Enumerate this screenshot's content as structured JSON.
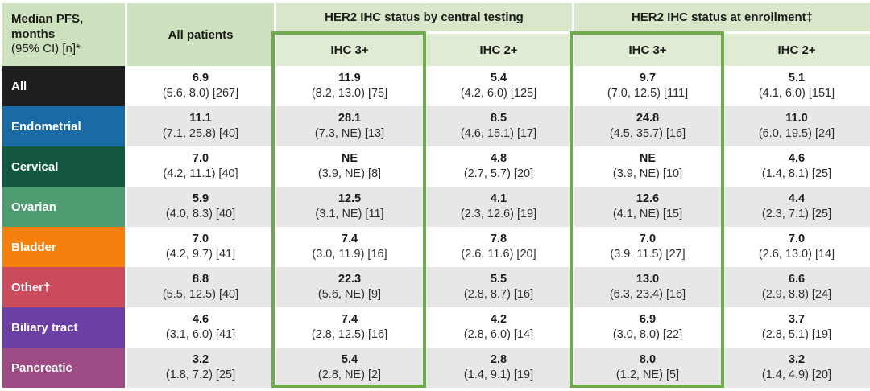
{
  "colors": {
    "header_corner_bg": "#cfe2bf",
    "header_group_bg": "#d8e7c9",
    "header_sub_bg": "#dfecd3",
    "highlight_border_green": "#6faa4d",
    "row_alt_bg": "#e7e7e7",
    "row_label_colors": [
      "#1e1e1e",
      "#1a6ba5",
      "#135743",
      "#4f9c72",
      "#f6800e",
      "#c94b5c",
      "#6b3fa4",
      "#9d4b84"
    ]
  },
  "chart_data": {
    "type": "table",
    "title": "Median PFS, months (95% CI) [n]*",
    "corner_header": [
      "Median PFS,",
      "months",
      "(95% CI) [n]*"
    ],
    "column_groups": [
      {
        "label": "All patients",
        "span": 1
      },
      {
        "label": "HER2 IHC status by central testing",
        "span": 2
      },
      {
        "label": "HER2 IHC status at enrollment‡",
        "span": 2
      }
    ],
    "sub_headers": [
      "IHC 3+",
      "IHC 2+",
      "IHC 3+",
      "IHC 2+"
    ],
    "highlighted_columns": [
      "IHC 3+ by central testing",
      "IHC 3+ at enrollment"
    ],
    "rows": [
      {
        "label": "All",
        "cells": [
          {
            "median": "6.9",
            "ci": "(5.6, 8.0) [267]"
          },
          {
            "median": "11.9",
            "ci": "(8.2, 13.0) [75]"
          },
          {
            "median": "5.4",
            "ci": "(4.2, 6.0) [125]"
          },
          {
            "median": "9.7",
            "ci": "(7.0, 12.5) [111]"
          },
          {
            "median": "5.1",
            "ci": "(4.1, 6.0) [151]"
          }
        ]
      },
      {
        "label": "Endometrial",
        "cells": [
          {
            "median": "11.1",
            "ci": "(7.1, 25.8) [40]"
          },
          {
            "median": "28.1",
            "ci": "(7.3, NE) [13]"
          },
          {
            "median": "8.5",
            "ci": "(4.6, 15.1) [17]"
          },
          {
            "median": "24.8",
            "ci": "(4.5, 35.7) [16]"
          },
          {
            "median": "11.0",
            "ci": "(6.0, 19.5) [24]"
          }
        ]
      },
      {
        "label": "Cervical",
        "cells": [
          {
            "median": "7.0",
            "ci": "(4.2, 11.1) [40]"
          },
          {
            "median": "NE",
            "ci": "(3.9, NE) [8]"
          },
          {
            "median": "4.8",
            "ci": "(2.7, 5.7) [20]"
          },
          {
            "median": "NE",
            "ci": "(3.9, NE) [10]"
          },
          {
            "median": "4.6",
            "ci": "(1.4, 8.1) [25]"
          }
        ]
      },
      {
        "label": "Ovarian",
        "cells": [
          {
            "median": "5.9",
            "ci": "(4.0, 8.3) [40]"
          },
          {
            "median": "12.5",
            "ci": "(3.1, NE) [11]"
          },
          {
            "median": "4.1",
            "ci": "(2.3, 12.6) [19]"
          },
          {
            "median": "12.6",
            "ci": "(4.1, NE) [15]"
          },
          {
            "median": "4.4",
            "ci": "(2.3, 7.1) [25]"
          }
        ]
      },
      {
        "label": "Bladder",
        "cells": [
          {
            "median": "7.0",
            "ci": "(4.2, 9.7) [41]"
          },
          {
            "median": "7.4",
            "ci": "(3.0, 11.9) [16]"
          },
          {
            "median": "7.8",
            "ci": "(2.6, 11.6) [20]"
          },
          {
            "median": "7.0",
            "ci": "(3.9, 11.5) [27]"
          },
          {
            "median": "7.0",
            "ci": "(2.6, 13.0) [14]"
          }
        ]
      },
      {
        "label": "Other†",
        "cells": [
          {
            "median": "8.8",
            "ci": "(5.5, 12.5) [40]"
          },
          {
            "median": "22.3",
            "ci": "(5.6, NE) [9]"
          },
          {
            "median": "5.5",
            "ci": "(2.8, 8.7) [16]"
          },
          {
            "median": "13.0",
            "ci": "(6.3, 23.4) [16]"
          },
          {
            "median": "6.6",
            "ci": "(2.9, 8.8) [24]"
          }
        ]
      },
      {
        "label": "Biliary tract",
        "cells": [
          {
            "median": "4.6",
            "ci": "(3.1, 6.0) [41]"
          },
          {
            "median": "7.4",
            "ci": "(2.8, 12.5) [16]"
          },
          {
            "median": "4.2",
            "ci": "(2.8, 6.0) [14]"
          },
          {
            "median": "6.9",
            "ci": "(3.0, 8.0) [22]"
          },
          {
            "median": "3.7",
            "ci": "(2.8, 5.1) [19]"
          }
        ]
      },
      {
        "label": "Pancreatic",
        "cells": [
          {
            "median": "3.2",
            "ci": "(1.8, 7.2) [25]"
          },
          {
            "median": "5.4",
            "ci": "(2.8, NE) [2]"
          },
          {
            "median": "2.8",
            "ci": "(1.4, 9.1) [19]"
          },
          {
            "median": "8.0",
            "ci": "(1.2, NE) [5]"
          },
          {
            "median": "3.2",
            "ci": "(1.4, 4.9) [20]"
          }
        ]
      }
    ]
  }
}
